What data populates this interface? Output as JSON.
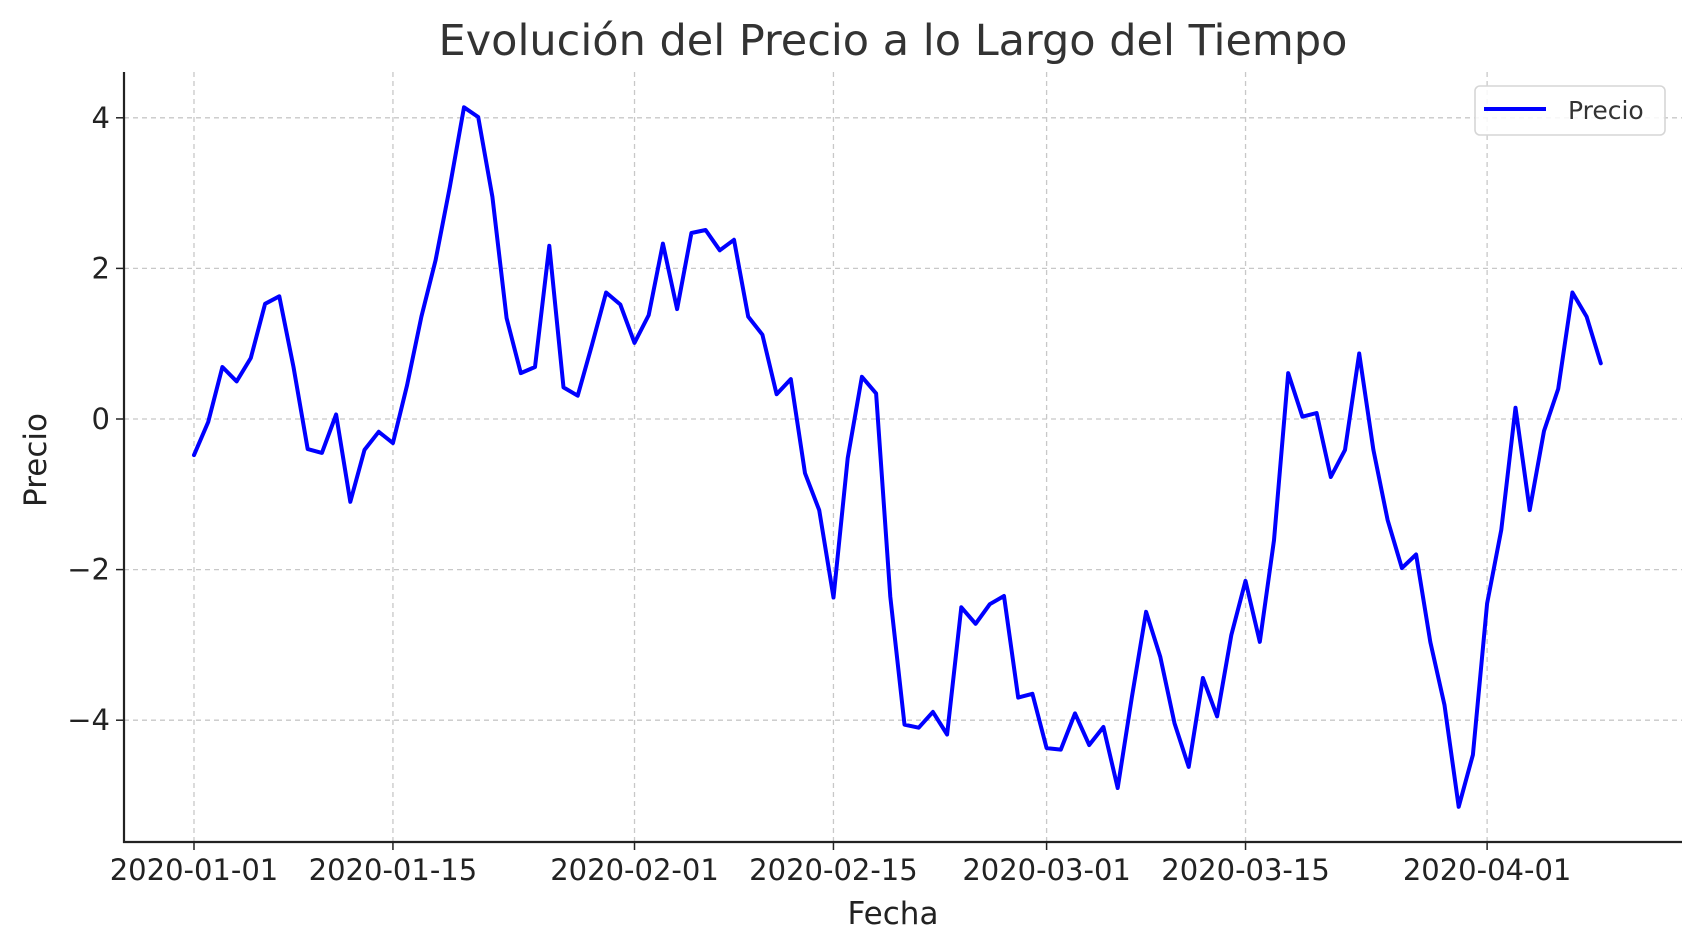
{
  "chart_data": {
    "type": "line",
    "title": "Evolución del Precio a lo Largo del Tiempo",
    "xlabel": "Fecha",
    "ylabel": "Precio",
    "x_start": "2020-01-01",
    "x_end": "2020-04-09",
    "x_frequency": "daily",
    "x_tick_labels": [
      "2020-01-01",
      "2020-01-15",
      "2020-02-01",
      "2020-02-15",
      "2020-03-01",
      "2020-03-15",
      "2020-04-01"
    ],
    "x_tick_day_offsets": [
      0,
      14,
      31,
      45,
      60,
      74,
      91
    ],
    "y_ticks": [
      4,
      2,
      0,
      -2,
      -4
    ],
    "y_tick_labels": [
      "4",
      "2",
      "0",
      "−2",
      "−4"
    ],
    "ylim": [
      -5.6,
      4.6
    ],
    "grid": true,
    "legend_position": "upper right",
    "series": [
      {
        "name": "Precio",
        "color": "#0000ff",
        "values": [
          -0.48,
          -0.04,
          0.69,
          0.5,
          0.81,
          1.53,
          1.63,
          0.69,
          -0.4,
          -0.45,
          0.06,
          -1.1,
          -0.41,
          -0.17,
          -0.32,
          0.45,
          1.36,
          2.11,
          3.08,
          4.14,
          4.01,
          2.95,
          1.34,
          0.61,
          0.69,
          2.3,
          0.42,
          0.31,
          0.98,
          1.68,
          1.52,
          1.01,
          1.38,
          2.33,
          1.46,
          2.47,
          2.51,
          2.24,
          2.38,
          1.36,
          1.12,
          0.33,
          0.53,
          -0.72,
          -1.21,
          -2.37,
          -0.52,
          0.56,
          0.34,
          -2.36,
          -4.06,
          -4.1,
          -3.89,
          -4.19,
          -2.5,
          -2.72,
          -2.46,
          -2.35,
          -3.7,
          -3.65,
          -4.37,
          -4.39,
          -3.91,
          -4.33,
          -4.09,
          -4.9,
          -3.69,
          -2.56,
          -3.16,
          -4.04,
          -4.62,
          -3.44,
          -3.95,
          -2.87,
          -2.15,
          -2.96,
          -1.61,
          0.61,
          0.03,
          0.08,
          -0.77,
          -0.41,
          0.87,
          -0.41,
          -1.34,
          -1.98,
          -1.8,
          -2.96,
          -3.8,
          -5.15,
          -4.46,
          -2.45,
          -1.47,
          0.15,
          -1.21,
          -0.16,
          0.4,
          1.68,
          1.36,
          0.74
        ]
      }
    ]
  },
  "legend": {
    "label": "Precio"
  }
}
